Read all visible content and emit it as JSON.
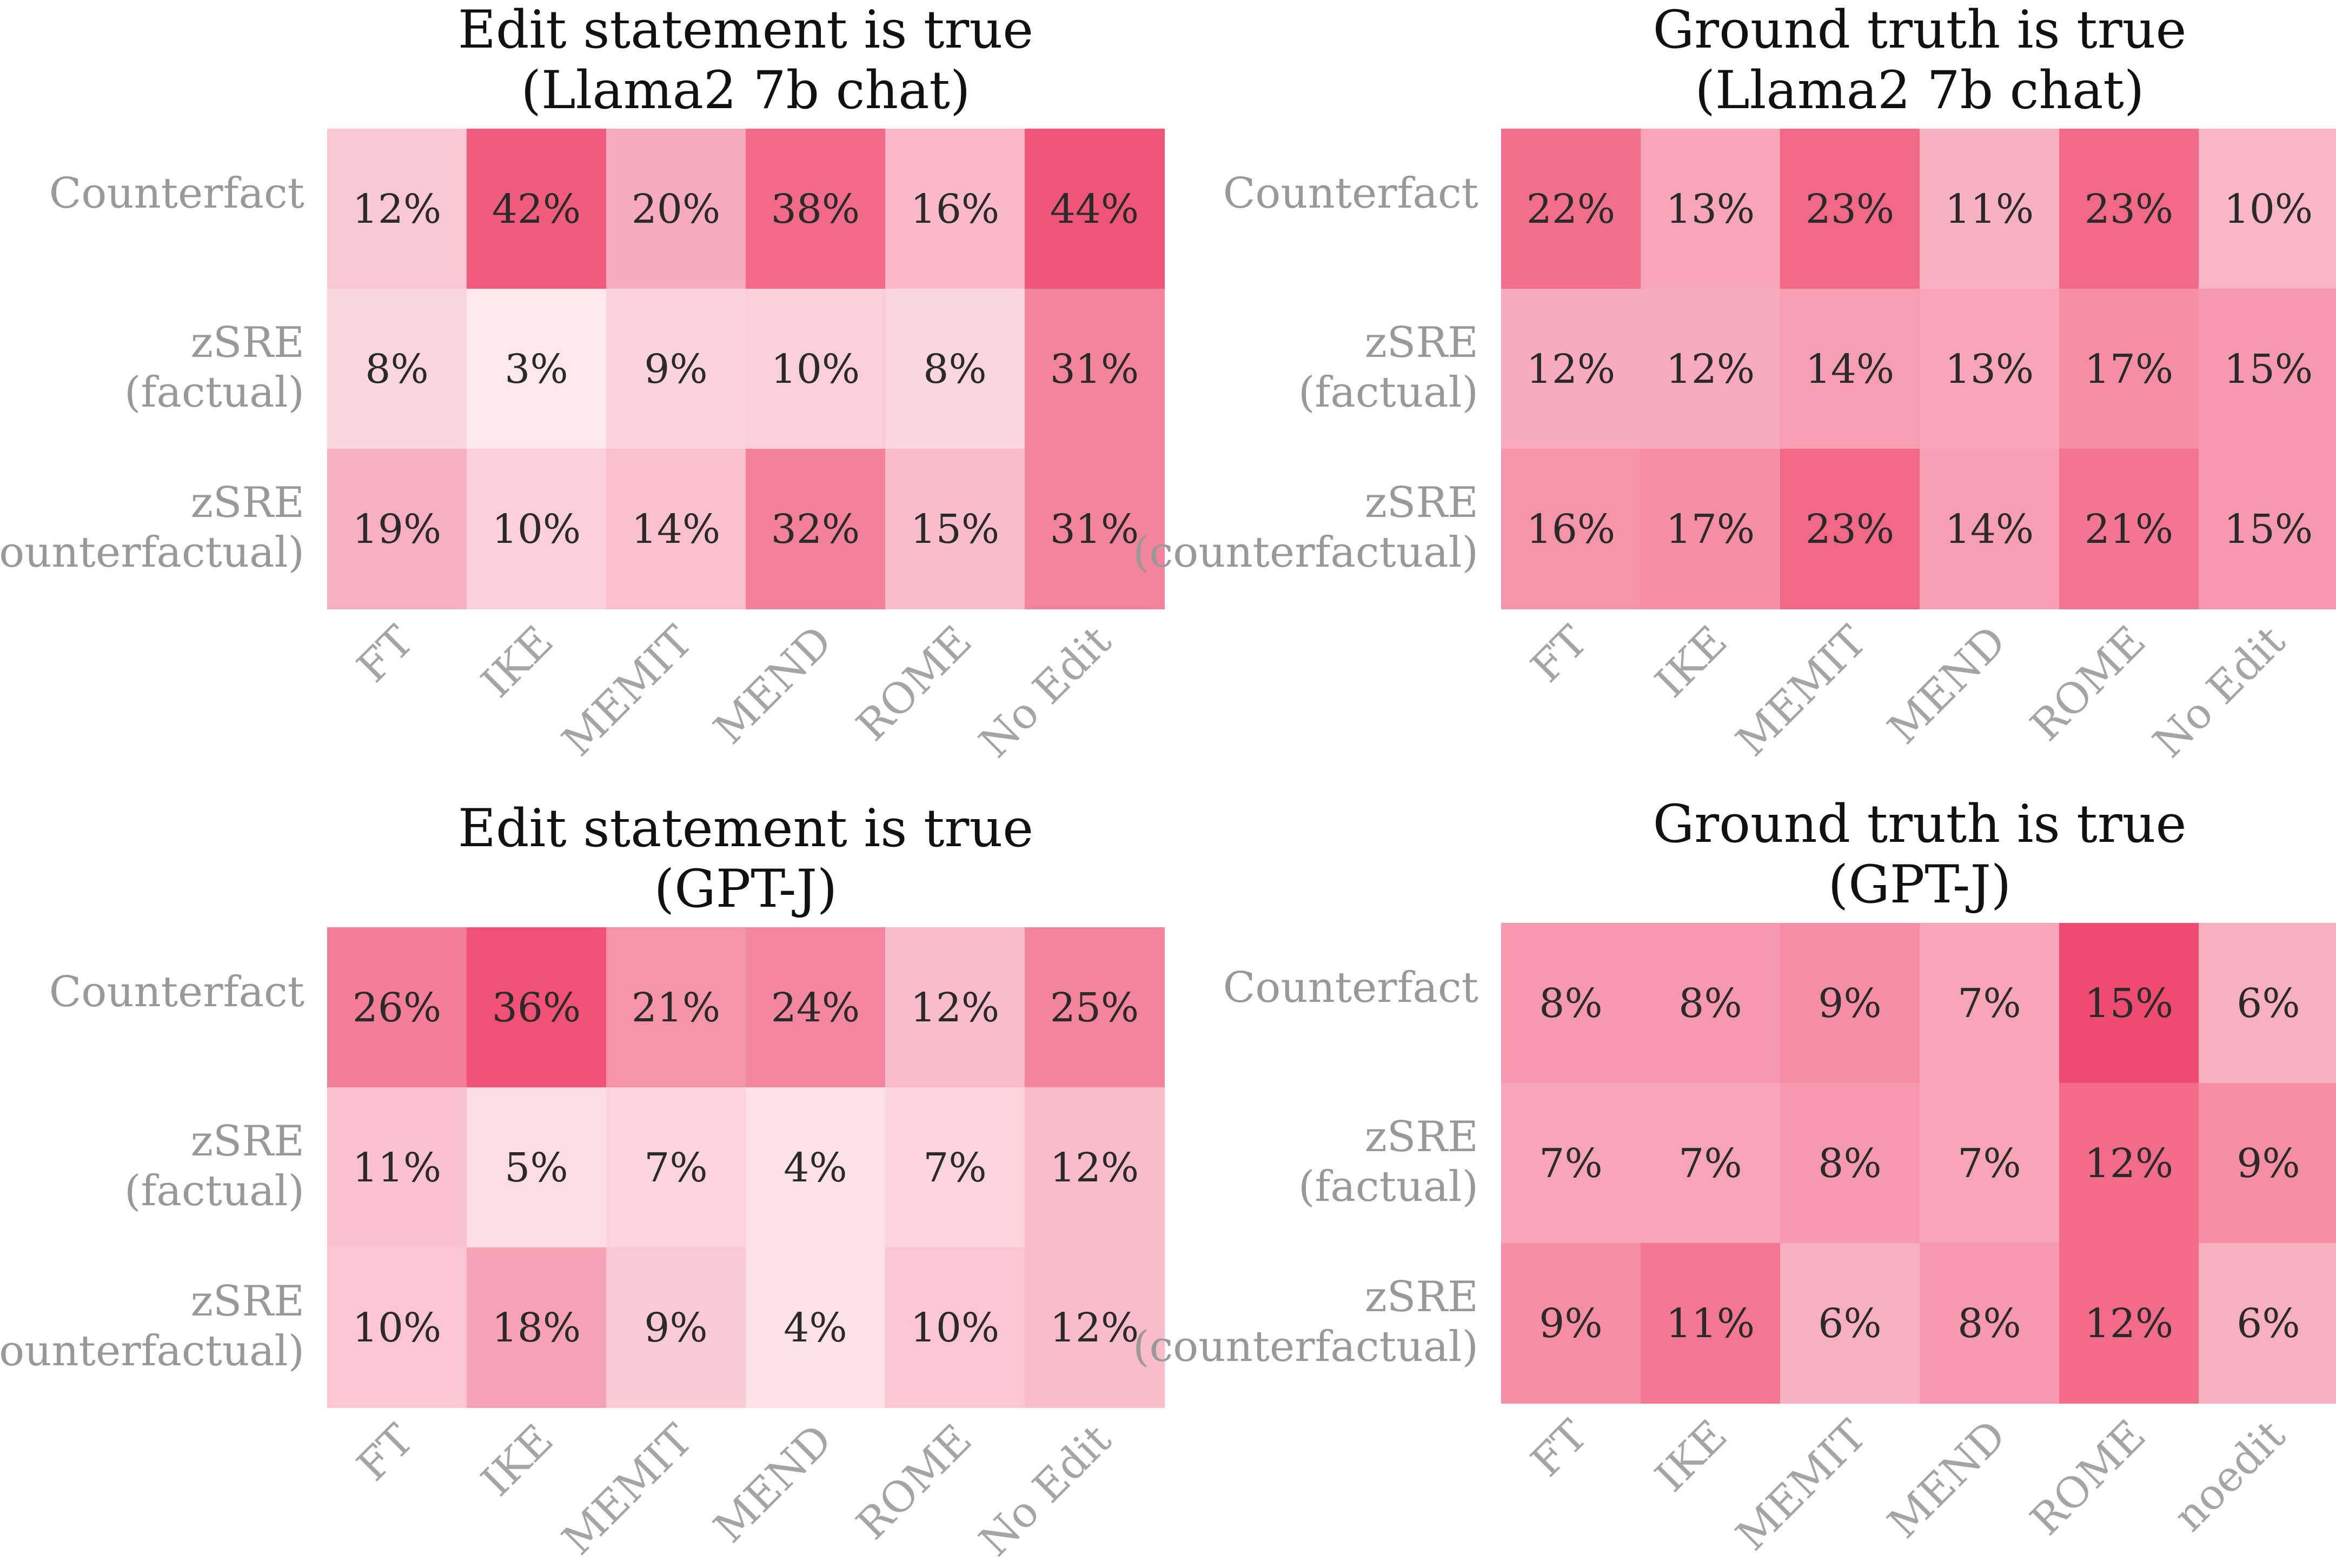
{
  "colors": {
    "cell_low": "#fef3f5",
    "cell_high": "#ee3f66",
    "value_text": "#2a2a2a",
    "axis_label": "#999999",
    "title_text": "#111111"
  },
  "chart_data": [
    {
      "type": "heatmap",
      "title": "Edit statement is true",
      "subtitle": "(Llama2 7b chat)",
      "rows": [
        {
          "line1": "Counterfact",
          "line2": ""
        },
        {
          "line1": "zSRE",
          "line2": "(factual)"
        },
        {
          "line1": "zSRE",
          "line2": "(counterfactual)"
        }
      ],
      "columns": [
        "FT",
        "IKE",
        "MEMIT",
        "MEND",
        "ROME",
        "No Edit"
      ],
      "values": [
        [
          12,
          42,
          20,
          38,
          16,
          44
        ],
        [
          8,
          3,
          9,
          10,
          8,
          31
        ],
        [
          19,
          10,
          14,
          32,
          15,
          31
        ]
      ],
      "labels": [
        [
          "12%",
          "42%",
          "20%",
          "38%",
          "16%",
          "44%"
        ],
        [
          "8%",
          "3%",
          "9%",
          "10%",
          "8%",
          "31%"
        ],
        [
          "19%",
          "10%",
          "14%",
          "32%",
          "15%",
          "31%"
        ]
      ],
      "range": [
        0,
        50
      ]
    },
    {
      "type": "heatmap",
      "title": "Ground truth is true",
      "subtitle": "(Llama2 7b chat)",
      "rows": [
        {
          "line1": "Counterfact",
          "line2": ""
        },
        {
          "line1": "zSRE",
          "line2": "(factual)"
        },
        {
          "line1": "zSRE",
          "line2": "(counterfactual)"
        }
      ],
      "columns": [
        "FT",
        "IKE",
        "MEMIT",
        "MEND",
        "ROME",
        "No Edit"
      ],
      "values": [
        [
          22,
          13,
          23,
          11,
          23,
          10
        ],
        [
          12,
          12,
          14,
          13,
          17,
          15
        ],
        [
          16,
          17,
          23,
          14,
          21,
          15
        ]
      ],
      "labels": [
        [
          "22%",
          "13%",
          "23%",
          "11%",
          "23%",
          "10%"
        ],
        [
          "12%",
          "12%",
          "14%",
          "13%",
          "17%",
          "15%"
        ],
        [
          "16%",
          "17%",
          "23%",
          "14%",
          "21%",
          "15%"
        ]
      ],
      "range": [
        0,
        30
      ]
    },
    {
      "type": "heatmap",
      "title": "Edit statement is true",
      "subtitle": "(GPT-J)",
      "rows": [
        {
          "line1": "Counterfact",
          "line2": ""
        },
        {
          "line1": "zSRE",
          "line2": "(factual)"
        },
        {
          "line1": "zSRE",
          "line2": "(counterfactual)"
        }
      ],
      "columns": [
        "FT",
        "IKE",
        "MEMIT",
        "MEND",
        "ROME",
        "No Edit"
      ],
      "values": [
        [
          26,
          36,
          21,
          24,
          12,
          25
        ],
        [
          11,
          5,
          7,
          4,
          7,
          12
        ],
        [
          10,
          18,
          9,
          4,
          10,
          12
        ]
      ],
      "labels": [
        [
          "26%",
          "36%",
          "21%",
          "24%",
          "12%",
          "25%"
        ],
        [
          "11%",
          "5%",
          "7%",
          "4%",
          "7%",
          "12%"
        ],
        [
          "10%",
          "18%",
          "9%",
          "4%",
          "10%",
          "12%"
        ]
      ],
      "range": [
        0,
        40
      ]
    },
    {
      "type": "heatmap",
      "title": "Ground truth is true",
      "subtitle": "(GPT-J)",
      "rows": [
        {
          "line1": "Counterfact",
          "line2": ""
        },
        {
          "line1": "zSRE",
          "line2": "(factual)"
        },
        {
          "line1": "zSRE",
          "line2": "(counterfactual)"
        }
      ],
      "columns": [
        "FT",
        "IKE",
        "MEMIT",
        "MEND",
        "ROME",
        "noedit"
      ],
      "values": [
        [
          8,
          8,
          9,
          7,
          15,
          6
        ],
        [
          7,
          7,
          8,
          7,
          12,
          9
        ],
        [
          9,
          11,
          6,
          8,
          12,
          6
        ]
      ],
      "labels": [
        [
          "8%",
          "8%",
          "9%",
          "7%",
          "15%",
          "6%"
        ],
        [
          "7%",
          "7%",
          "8%",
          "7%",
          "12%",
          "9%"
        ],
        [
          "9%",
          "11%",
          "6%",
          "8%",
          "12%",
          "6%"
        ]
      ],
      "range": [
        0,
        16
      ]
    }
  ]
}
